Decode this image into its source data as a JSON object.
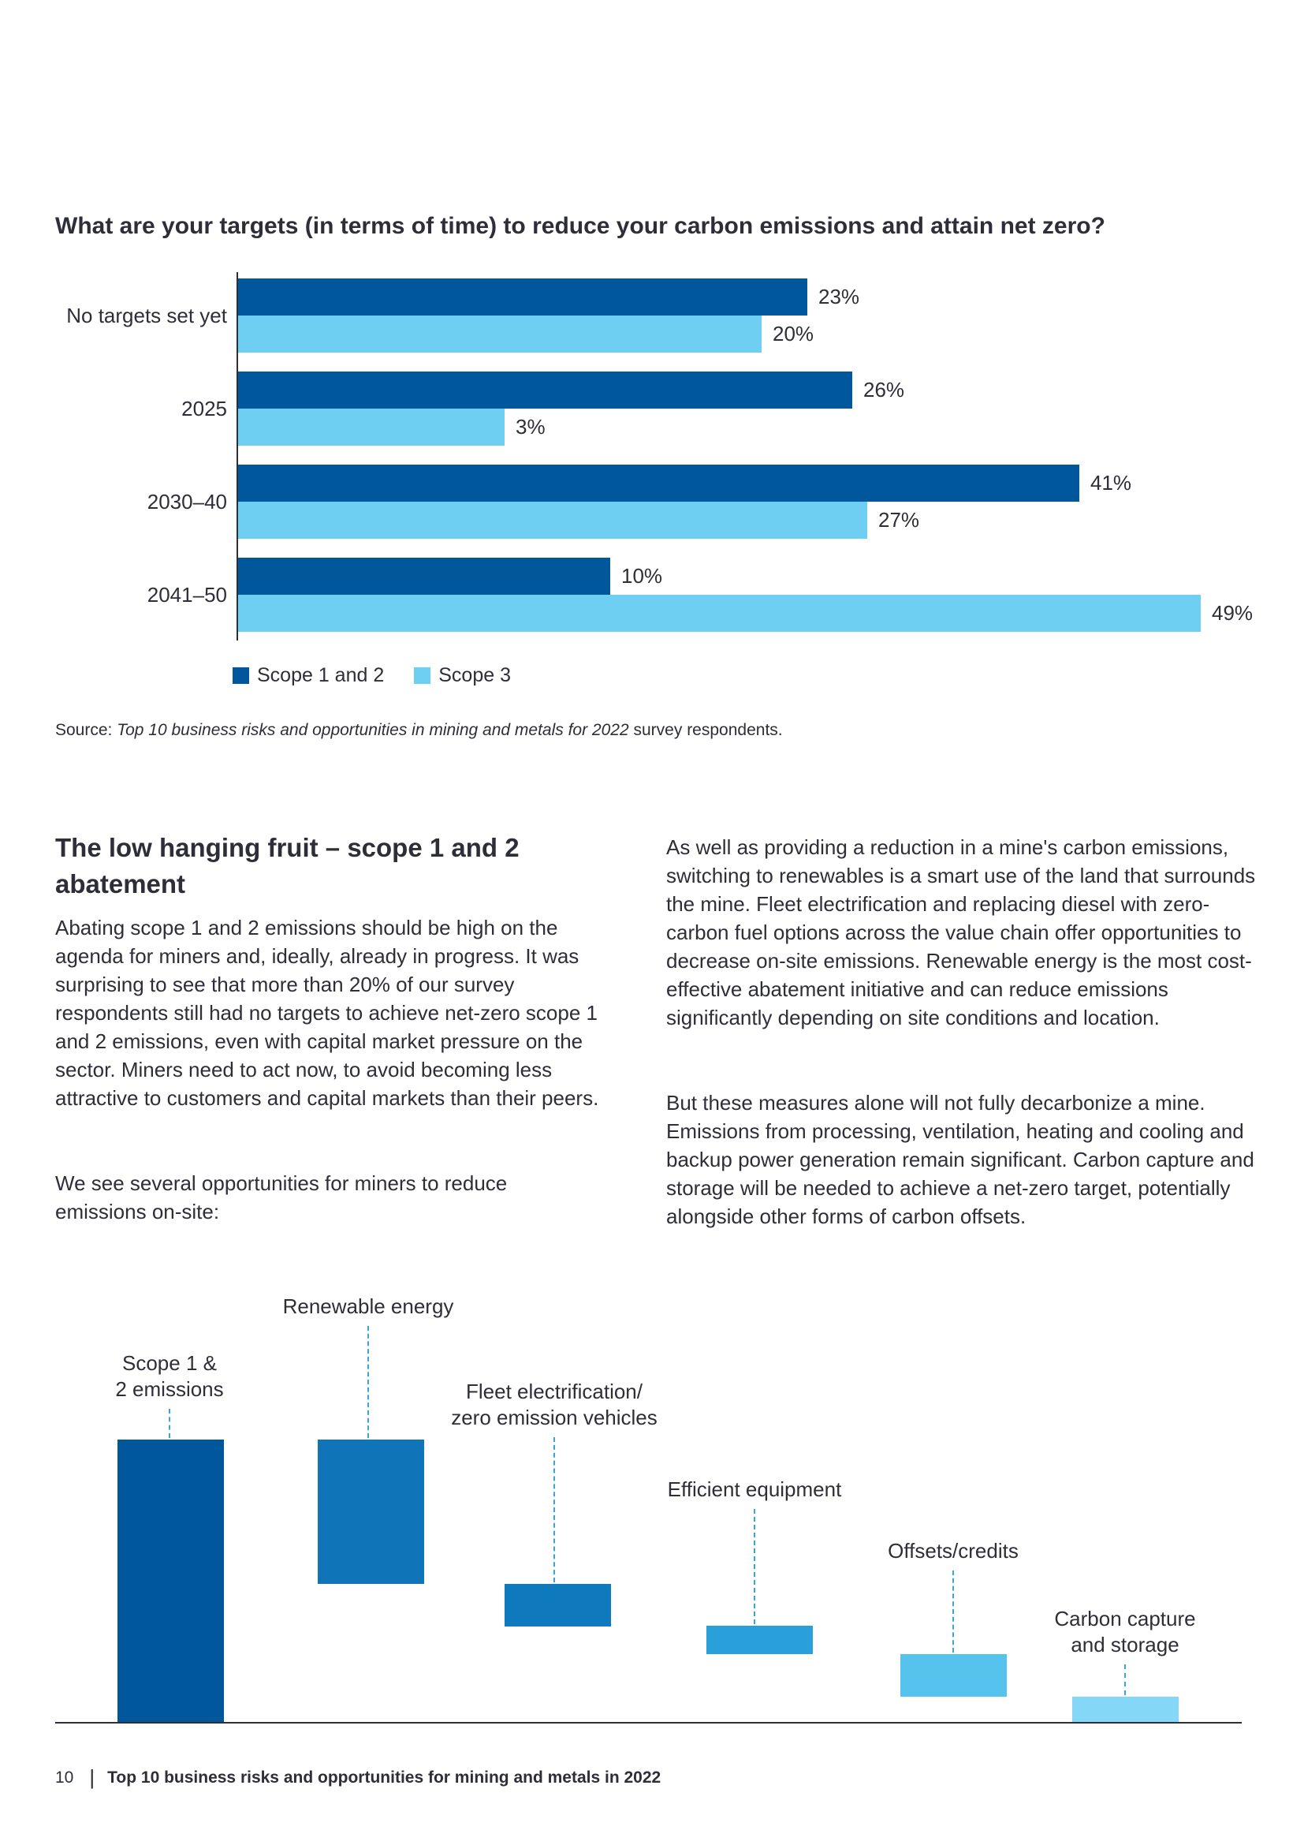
{
  "chart_data": [
    {
      "type": "bar",
      "orientation": "horizontal",
      "title": "What are your targets (in terms of time) to reduce your carbon emissions and attain net zero?",
      "categories": [
        "No targets set yet",
        "2025",
        "2030–40",
        "2041–50"
      ],
      "series": [
        {
          "name": "Scope 1 and 2",
          "color": "#00579B",
          "values": [
            23,
            26,
            41,
            10
          ]
        },
        {
          "name": "Scope 3",
          "color": "#6FCFF2",
          "values": [
            20,
            3,
            27,
            49
          ]
        }
      ],
      "unit": "%",
      "value_labels": [
        "23%",
        "20%",
        "26%",
        "3%",
        "41%",
        "27%",
        "10%",
        "49%"
      ],
      "legend_position": "bottom",
      "grid": "off"
    },
    {
      "type": "waterfall",
      "steps": [
        {
          "label_lines": [
            "Scope 1 &",
            "2 emissions"
          ],
          "role": "total",
          "value": 100,
          "color": "#00579B"
        },
        {
          "label_lines": [
            "Renewable energy"
          ],
          "role": "decrease",
          "value": 51,
          "color": "#0F74B8"
        },
        {
          "label_lines": [
            "Fleet electrification/",
            "zero emission vehicles"
          ],
          "role": "decrease",
          "value": 15,
          "color": "#0F79BE"
        },
        {
          "label_lines": [
            "Efficient equipment"
          ],
          "role": "decrease",
          "value": 10,
          "color": "#29A0DA"
        },
        {
          "label_lines": [
            "Offsets/credits"
          ],
          "role": "decrease",
          "value": 15,
          "color": "#55C3EE"
        },
        {
          "label_lines": [
            "Carbon capture",
            "and storage"
          ],
          "role": "decrease",
          "value": 9,
          "color": "#84D7F6"
        }
      ],
      "values_note": "relative heights; chart shows no numeric labels"
    }
  ],
  "source": {
    "prefix": "Source: ",
    "italic": "Top 10 business risks and opportunities in mining and metals for 2022",
    "suffix": " survey respondents."
  },
  "section": {
    "heading_lines": [
      "The low hanging fruit – scope 1 and 2",
      "abatement"
    ],
    "left": {
      "p1": "Abating scope 1 and 2 emissions should be high on the agenda for miners and, ideally, already in progress. It was surprising to see that more than 20% of our survey respondents still had no targets to achieve net-zero scope 1 and 2 emissions, even with capital market pressure on the sector. Miners need to act now, to avoid becoming less attractive to customers and capital markets than their peers.",
      "p2": "We see several opportunities for miners to reduce emissions on-site:"
    },
    "right": {
      "p1": "As well as providing a reduction in a mine's carbon emissions, switching to renewables is a smart use of the land that surrounds the mine. Fleet electrification and replacing diesel with zero-carbon fuel options across the value chain offer opportunities to decrease on-site emissions. Renewable energy is the most cost-effective abatement initiative and can reduce emissions significantly depending on site conditions and location.",
      "p2": "But these measures alone will not fully decarbonize a mine. Emissions from processing, ventilation, heating and cooling and backup power generation remain significant. Carbon capture and storage will be needed to achieve a net-zero target, potentially alongside other forms of carbon offsets."
    }
  },
  "footer": {
    "page_number": "10",
    "separator": "|",
    "title": "Top 10 business risks and opportunities for mining and metals in 2022"
  },
  "colors": {
    "text": "#2E2E38",
    "axis": "#2E2E38",
    "dash_line": "#39A5DB",
    "scope12_dark_blue": "#00579B",
    "scope3_light_blue": "#6FCFF2"
  }
}
